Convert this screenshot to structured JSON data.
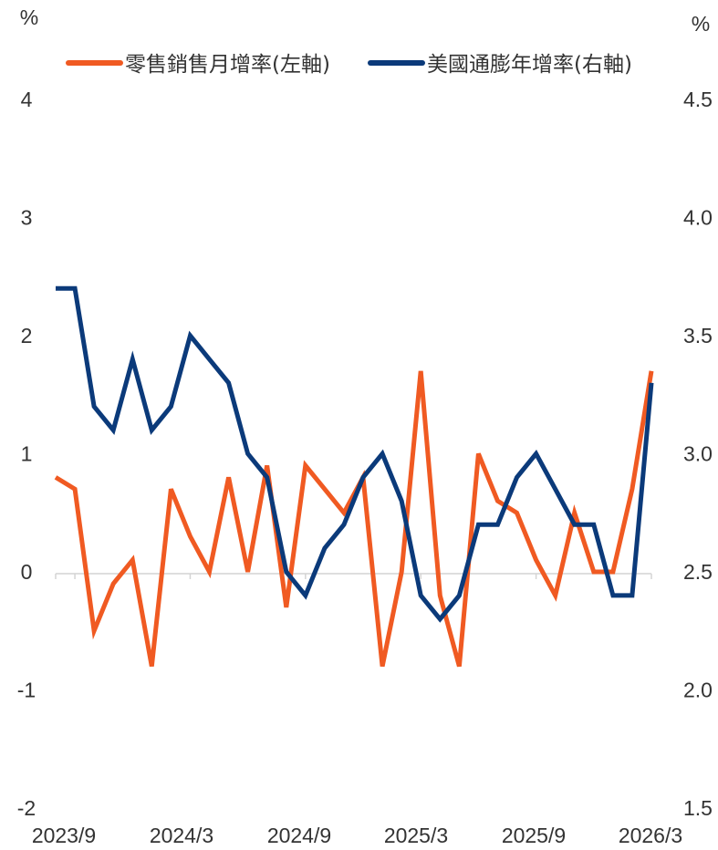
{
  "chart_data": {
    "type": "line",
    "left_unit": "%",
    "right_unit": "%",
    "x": [
      "2023/8",
      "2023/9",
      "2023/10",
      "2023/11",
      "2023/12",
      "2024/1",
      "2024/2",
      "2024/3",
      "2024/4",
      "2024/5",
      "2024/6",
      "2024/7",
      "2024/8",
      "2024/9",
      "2024/10",
      "2024/11",
      "2024/12",
      "2025/1",
      "2025/2",
      "2025/3",
      "2025/4",
      "2025/5",
      "2025/6",
      "2025/7",
      "2025/8",
      "2025/9",
      "2025/10",
      "2025/11",
      "2025/12",
      "2026/1",
      "2026/2",
      "2026/3"
    ],
    "x_tick_labels": [
      "2023/9",
      "2024/3",
      "2024/9",
      "2025/3",
      "2025/9",
      "2026/3"
    ],
    "y_left": {
      "range": [
        -2,
        4
      ],
      "ticks": [
        "-2",
        "-1",
        "0",
        "1",
        "2",
        "3",
        "4"
      ]
    },
    "y_right": {
      "range": [
        1.5,
        4.5
      ],
      "ticks": [
        "1.5",
        "2.0",
        "2.5",
        "3.0",
        "3.5",
        "4.0",
        "4.5"
      ]
    },
    "series": [
      {
        "name": "零售銷售月增率(左軸)",
        "axis": "left",
        "color": "#f05a22",
        "values": [
          0.8,
          0.7,
          -0.5,
          -0.1,
          0.1,
          -0.8,
          0.7,
          0.3,
          0.0,
          0.8,
          0.0,
          0.9,
          -0.3,
          0.9,
          0.7,
          0.5,
          0.8,
          -0.8,
          0.0,
          1.7,
          -0.2,
          -0.8,
          1.0,
          0.6,
          0.5,
          0.1,
          -0.2,
          0.5,
          0.0,
          0.0,
          0.7,
          1.7
        ]
      },
      {
        "name": "美國通膨年增率(右軸)",
        "axis": "right",
        "color": "#0b3a7a",
        "values": [
          3.7,
          3.7,
          3.2,
          3.1,
          3.4,
          3.1,
          3.2,
          3.5,
          3.4,
          3.3,
          3.0,
          2.9,
          2.5,
          2.4,
          2.6,
          2.7,
          2.9,
          3.0,
          2.8,
          2.4,
          2.3,
          2.4,
          2.7,
          2.7,
          2.9,
          3.0,
          2.85,
          2.7,
          2.7,
          2.4,
          2.4,
          3.3
        ]
      }
    ],
    "legend_position": "top",
    "grid": false
  }
}
